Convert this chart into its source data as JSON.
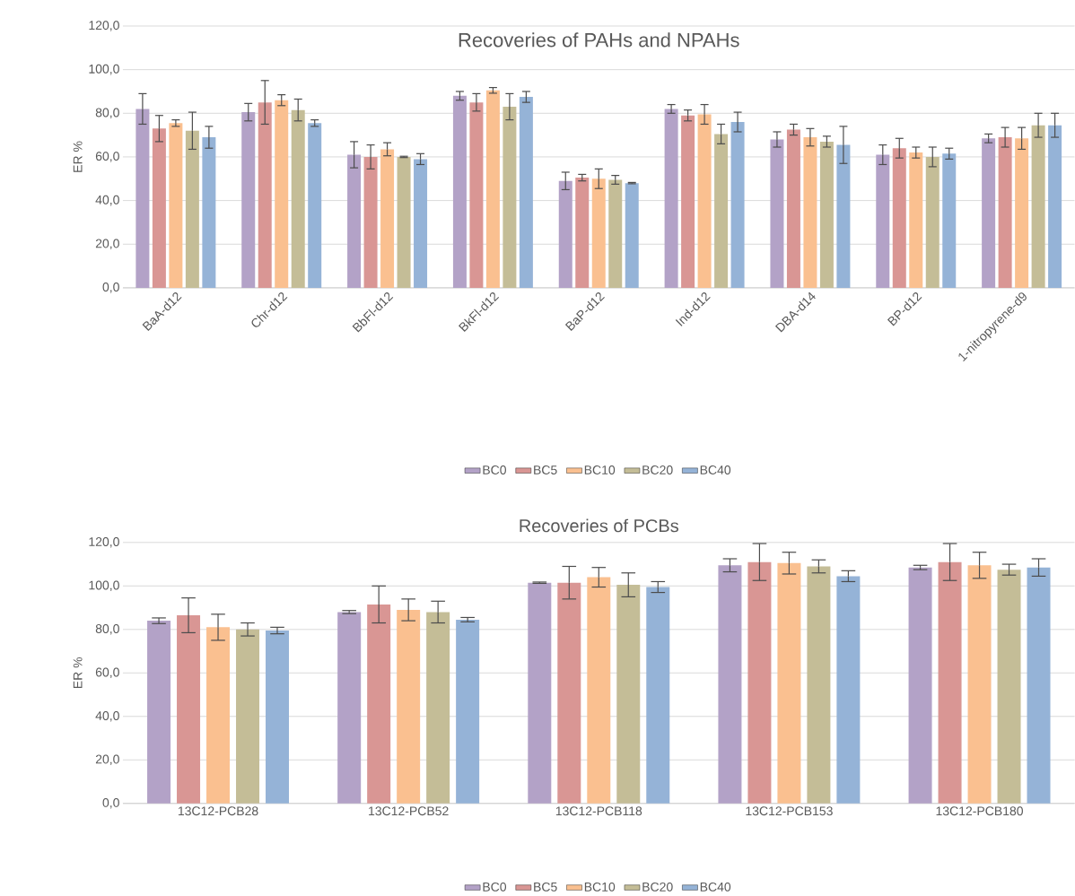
{
  "chart_data": [
    {
      "type": "bar",
      "title": "Recoveries of PAHs and  NPAHs",
      "ylabel": "ER %",
      "categories": [
        "BaA-d12",
        "Chr-d12",
        "BbFl-d12",
        "BkFl-d12",
        "BaP-d12",
        "Ind-d12",
        "DBA-d14",
        "BP-d12",
        "1-nitropyrene-d9"
      ],
      "series": [
        {
          "name": "BC0",
          "color": "#b3a2c7",
          "values": [
            82,
            80.5,
            61,
            88,
            49,
            82,
            68,
            61,
            68.5
          ],
          "errors": [
            7,
            4,
            6,
            2,
            4,
            2,
            3.5,
            4.5,
            2
          ]
        },
        {
          "name": "BC5",
          "color": "#d99694",
          "values": [
            73,
            85,
            60,
            85,
            50.5,
            79,
            72.5,
            64,
            69
          ],
          "errors": [
            6,
            10,
            5.5,
            4,
            1.5,
            2.5,
            2.5,
            4.5,
            4.5
          ]
        },
        {
          "name": "BC10",
          "color": "#fac090",
          "values": [
            75.5,
            86,
            63.5,
            90.5,
            50,
            79.5,
            69,
            62,
            68.5
          ],
          "errors": [
            1.5,
            2.5,
            3,
            1.3,
            4.5,
            4.5,
            4,
            2.5,
            5
          ]
        },
        {
          "name": "BC20",
          "color": "#c4bd97",
          "values": [
            72,
            81.5,
            60,
            83,
            49.5,
            70.5,
            67,
            60,
            74.5
          ],
          "errors": [
            8.5,
            5,
            0.3,
            6,
            2,
            4.5,
            2.5,
            4.5,
            5.5
          ]
        },
        {
          "name": "BC40",
          "color": "#95b3d7",
          "values": [
            69,
            75.5,
            59,
            87.5,
            48,
            76,
            65.5,
            61.5,
            74.5
          ],
          "errors": [
            5,
            1.5,
            2.5,
            2.5,
            0.3,
            4.5,
            8.5,
            2.5,
            5.5
          ]
        }
      ],
      "ylim": [
        0,
        120
      ],
      "yticks": [
        {
          "value": 0,
          "label": "0,0"
        },
        {
          "value": 20,
          "label": "20,0"
        },
        {
          "value": 40,
          "label": "40,0"
        },
        {
          "value": 60,
          "label": "60,0"
        },
        {
          "value": 80,
          "label": "80,0"
        },
        {
          "value": 100,
          "label": "100,0"
        },
        {
          "value": 120,
          "label": "120,0"
        }
      ],
      "grid": "y",
      "legend": "bottom"
    },
    {
      "type": "bar",
      "title": "Recoveries of PCBs",
      "ylabel": "ER %",
      "categories": [
        "13C12-PCB28",
        "13C12-PCB52",
        "13C12-PCB118",
        "13C12-PCB153",
        "13C12-PCB180"
      ],
      "series": [
        {
          "name": "BC0",
          "color": "#b3a2c7",
          "values": [
            84,
            88,
            101.5,
            109.5,
            108.5
          ],
          "errors": [
            1.3,
            0.7,
            0.3,
            3,
            1
          ]
        },
        {
          "name": "BC5",
          "color": "#d99694",
          "values": [
            86.5,
            91.5,
            101.5,
            111,
            111
          ],
          "errors": [
            8,
            8.5,
            7.5,
            8.5,
            8.5
          ]
        },
        {
          "name": "BC10",
          "color": "#fac090",
          "values": [
            81,
            89,
            104,
            110.5,
            109.5
          ],
          "errors": [
            6,
            5,
            4.5,
            5,
            6
          ]
        },
        {
          "name": "BC20",
          "color": "#c4bd97",
          "values": [
            80,
            88,
            100.5,
            109,
            107.5
          ],
          "errors": [
            3,
            5,
            5.5,
            3,
            2.5
          ]
        },
        {
          "name": "BC40",
          "color": "#95b3d7",
          "values": [
            79.5,
            84.5,
            99.5,
            104.5,
            108.5
          ],
          "errors": [
            1.5,
            1,
            2.5,
            2.5,
            4
          ]
        }
      ],
      "ylim": [
        0,
        120
      ],
      "yticks": [
        {
          "value": 0,
          "label": "0,0"
        },
        {
          "value": 20,
          "label": "20,0"
        },
        {
          "value": 40,
          "label": "40,0"
        },
        {
          "value": 60,
          "label": "60,0"
        },
        {
          "value": 80,
          "label": "80,0"
        },
        {
          "value": 100,
          "label": "100,0"
        },
        {
          "value": 120,
          "label": "120,0"
        }
      ],
      "grid": "y",
      "legend": "bottom"
    }
  ]
}
